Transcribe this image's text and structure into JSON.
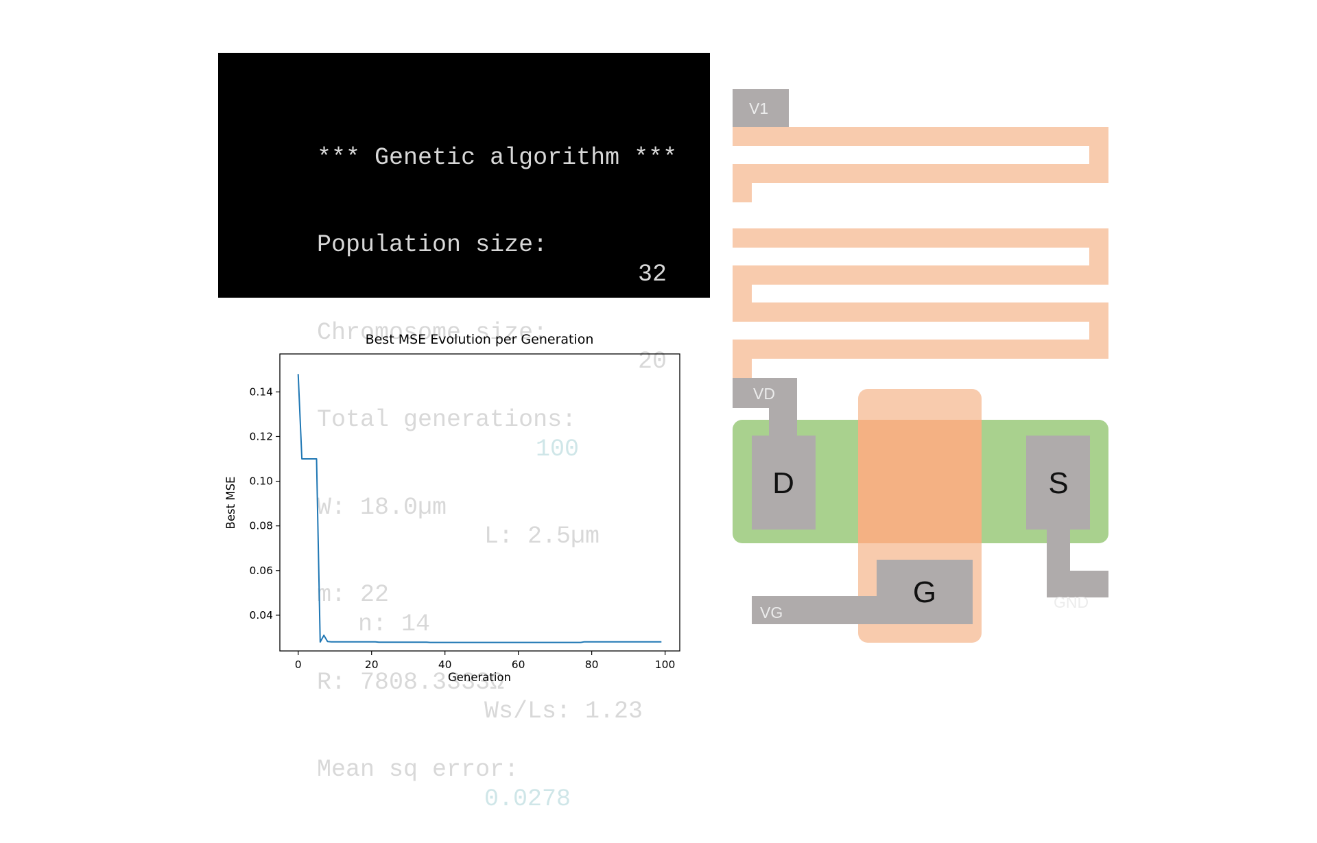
{
  "terminal": {
    "lines": [
      {
        "label": "*** Genetic algorithm ***",
        "value": ""
      },
      {
        "label": "Population size:",
        "value": "32"
      },
      {
        "label": "Chromosome size:",
        "value": "20"
      },
      {
        "label": "Total generations:",
        "value": "100"
      },
      {
        "label": "W: 18.0µm",
        "value": "L: 2.5µm"
      },
      {
        "label": "m: 22",
        "value": "n: 14"
      },
      {
        "label": "R: 7808.3333Ω",
        "value": "Ws/Ls: 1.23"
      },
      {
        "label": "Mean sq error:",
        "value": "0.0278"
      }
    ]
  },
  "chart_data": {
    "type": "line",
    "title": "Best MSE Evolution per Generation",
    "xlabel": "Generation",
    "ylabel": "Best MSE",
    "xlim": [
      -5,
      104
    ],
    "ylim": [
      0.024,
      0.157
    ],
    "xticks": [
      0,
      20,
      40,
      60,
      80,
      100
    ],
    "yticks": [
      0.04,
      0.06,
      0.08,
      0.1,
      0.12,
      0.14
    ],
    "ytick_labels": [
      "0.04",
      "0.06",
      "0.08",
      "0.10",
      "0.12",
      "0.14"
    ],
    "grid": false,
    "line_color": "#1f77b4",
    "series": [
      {
        "x": [
          0,
          1,
          2,
          3,
          4,
          5,
          6,
          7,
          8,
          9,
          10,
          15,
          20,
          21,
          22,
          30,
          35,
          36,
          40,
          50,
          60,
          70,
          77,
          78,
          80,
          90,
          99
        ],
        "y": [
          0.148,
          0.11,
          0.11,
          0.11,
          0.11,
          0.11,
          0.028,
          0.031,
          0.0282,
          0.0281,
          0.0281,
          0.0281,
          0.0281,
          0.0281,
          0.0279,
          0.0279,
          0.0279,
          0.0278,
          0.0278,
          0.0278,
          0.0278,
          0.0278,
          0.0278,
          0.0281,
          0.0281,
          0.0281,
          0.0281
        ]
      }
    ]
  },
  "layout": {
    "labels": {
      "v1": "V1",
      "vd": "VD",
      "vg": "VG",
      "gnd": "GND",
      "drain": "D",
      "source": "S",
      "gate": "G"
    },
    "colors": {
      "resistor": "#f8cbad",
      "active": "#a9d18e",
      "gate_overlap": "#f4b183",
      "metal": "#afabab"
    }
  }
}
